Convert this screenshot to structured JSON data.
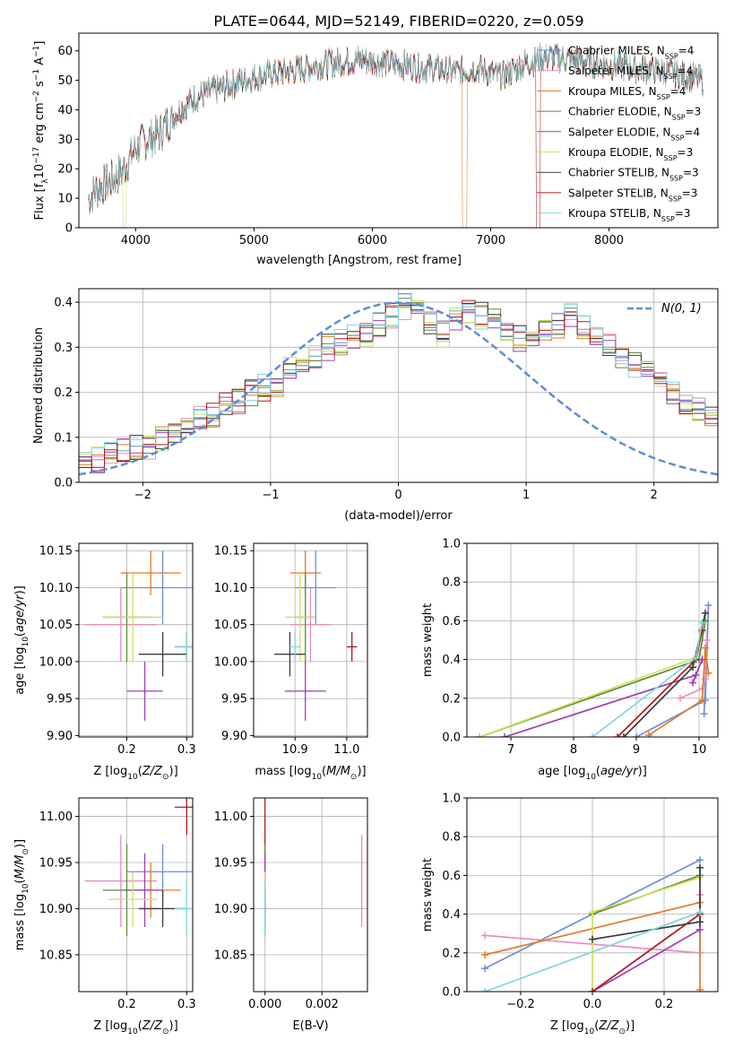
{
  "figure_title": "PLATE=0644, MJD=52149, FIBERID=0220, z=0.059",
  "colors": {
    "Chabrier MILES": "#6a8fd8",
    "Salpeter MILES": "#e58fc0",
    "Kroupa MILES": "#e07b28",
    "Chabrier ELODIE": "#5c8a3a",
    "Salpeter ELODIE": "#9b3fb0",
    "Kroupa ELODIE": "#cfe05a",
    "Chabrier STELIB": "#3a3a3a",
    "Salpeter STELIB": "#b01818",
    "Kroupa STELIB": "#7fd6e0",
    "gaussian": "#5b8fd4"
  },
  "chart_data": [
    {
      "id": "spectrum",
      "type": "line",
      "xlabel": "wavelength [Angstrom, rest frame]",
      "ylabel": "Flux [f_λ 10^-17 erg cm^-2 s^-1 A^-1]",
      "xlim": [
        3520,
        8920
      ],
      "ylim": [
        0,
        66
      ],
      "xticks": [
        4000,
        5000,
        6000,
        7000,
        8000
      ],
      "yticks": [
        0,
        10,
        20,
        30,
        40,
        50,
        60
      ],
      "grid": false,
      "legend_position": "right",
      "legend": [
        {
          "model": "Chabrier MILES",
          "label_prefix": "Chabrier MILES, N",
          "sub": "SSP",
          "suffix": "=4"
        },
        {
          "model": "Salpeter MILES",
          "label_prefix": "Salpeter MILES, N",
          "sub": "SSP",
          "suffix": "=4"
        },
        {
          "model": "Kroupa MILES",
          "label_prefix": "Kroupa MILES, N",
          "sub": "SSP",
          "suffix": "=4"
        },
        {
          "model": "Chabrier ELODIE",
          "label_prefix": "Chabrier ELODIE, N",
          "sub": "SSP",
          "suffix": "=3"
        },
        {
          "model": "Salpeter ELODIE",
          "label_prefix": "Salpeter ELODIE, N",
          "sub": "SSP",
          "suffix": "=4"
        },
        {
          "model": "Kroupa ELODIE",
          "label_prefix": "Kroupa ELODIE, N",
          "sub": "SSP",
          "suffix": "=3"
        },
        {
          "model": "Chabrier STELIB",
          "label_prefix": "Chabrier STELIB, N",
          "sub": "SSP",
          "suffix": "=3"
        },
        {
          "model": "Salpeter STELIB",
          "label_prefix": "Salpeter STELIB, N",
          "sub": "SSP",
          "suffix": "=3"
        },
        {
          "model": "Kroupa STELIB",
          "label_prefix": "Kroupa STELIB, N",
          "sub": "SSP",
          "suffix": "=3"
        }
      ],
      "continuum": {
        "x": [
          3600,
          3700,
          3800,
          3900,
          4000,
          4100,
          4200,
          4300,
          4400,
          4500,
          4700,
          4900,
          5100,
          5300,
          5500,
          5700,
          5900,
          6100,
          6300,
          6500,
          6700,
          6900,
          7100,
          7300,
          7500,
          7700,
          8000,
          8300,
          8600,
          8800
        ],
        "y": [
          10,
          14,
          16,
          20,
          27,
          30,
          32,
          37,
          41,
          44,
          47,
          50,
          52,
          53,
          55,
          56,
          57,
          56,
          55,
          54,
          53,
          54,
          51,
          56,
          58,
          57,
          55,
          54,
          52,
          50
        ]
      },
      "notes": "spectra drawn as noisy traces around the continuum; Kroupa MILES and Salpeter STELIB drop to zero near 6780 Å and 7400 Å"
    },
    {
      "id": "residual_hist",
      "type": "bar",
      "xlabel": "(data-model)/error",
      "ylabel": "Normed distribution",
      "xlim": [
        -2.5,
        2.5
      ],
      "ylim": [
        0,
        0.43
      ],
      "xticks": [
        -2,
        -1,
        0,
        1,
        2
      ],
      "yticks": [
        0.0,
        0.1,
        0.2,
        0.3,
        0.4
      ],
      "grid": true,
      "legend_position": "top-right",
      "gaussian_label": "N(0, 1)",
      "bin_edges_from": -2.5,
      "bin_width": 0.1,
      "series": [
        {
          "model": "Chabrier MILES",
          "values": [
            0.05,
            0.05,
            0.06,
            0.07,
            0.08,
            0.08,
            0.1,
            0.11,
            0.12,
            0.14,
            0.15,
            0.18,
            0.18,
            0.2,
            0.21,
            0.22,
            0.25,
            0.26,
            0.28,
            0.3,
            0.31,
            0.32,
            0.33,
            0.35,
            0.37,
            0.39,
            0.38,
            0.35,
            0.33,
            0.36,
            0.38,
            0.37,
            0.36,
            0.34,
            0.32,
            0.33,
            0.33,
            0.35,
            0.37,
            0.34,
            0.32,
            0.3,
            0.28,
            0.26,
            0.24,
            0.22,
            0.2,
            0.18,
            0.16,
            0.14,
            0.12,
            0.11,
            0.1,
            0.08,
            0.07,
            0.06,
            0.05,
            0.05,
            0.04,
            0.03
          ]
        }
      ]
    },
    {
      "id": "age_vs_Z",
      "type": "scatter",
      "xlabel": "Z [log10(Z/Z⊙)]",
      "ylabel": "age  [log10(age/yr)]",
      "xlim": [
        0.12,
        0.31
      ],
      "ylim": [
        9.898,
        10.16
      ],
      "xticks": [
        0.2,
        0.3
      ],
      "yticks": [
        9.9,
        9.95,
        10.0,
        10.05,
        10.1,
        10.15
      ],
      "grid": true,
      "points": [
        {
          "model": "Chabrier MILES",
          "x": 0.26,
          "y": 10.1,
          "xerr": 0.07,
          "yerr": 0.05
        },
        {
          "model": "Salpeter MILES",
          "x": 0.19,
          "y": 10.05,
          "xerr": 0.06,
          "yerr": 0.05
        },
        {
          "model": "Kroupa MILES",
          "x": 0.24,
          "y": 10.12,
          "xerr": 0.05,
          "yerr": 0.03
        },
        {
          "model": "Chabrier ELODIE",
          "x": 0.2,
          "y": 10.06,
          "xerr": 0.04,
          "yerr": 0.06
        },
        {
          "model": "Salpeter ELODIE",
          "x": 0.23,
          "y": 9.96,
          "xerr": 0.03,
          "yerr": 0.04
        },
        {
          "model": "Kroupa ELODIE",
          "x": 0.21,
          "y": 10.06,
          "xerr": 0.05,
          "yerr": 0.06
        },
        {
          "model": "Chabrier STELIB",
          "x": 0.26,
          "y": 10.01,
          "xerr": 0.04,
          "yerr": 0.03
        },
        {
          "model": "Salpeter STELIB",
          "x": 0.3,
          "y": 10.02,
          "xerr": 0.02,
          "yerr": 0.02
        },
        {
          "model": "Kroupa STELIB",
          "x": 0.3,
          "y": 10.02,
          "xerr": 0.02,
          "yerr": 0.02
        }
      ]
    },
    {
      "id": "age_vs_mass",
      "type": "scatter",
      "xlabel": "mass [log10(M/M⊙)]",
      "ylabel": "",
      "xlim": [
        10.82,
        11.04
      ],
      "ylim": [
        9.898,
        10.16
      ],
      "xticks": [
        10.9,
        11.0
      ],
      "yticks": [
        9.9,
        9.95,
        10.0,
        10.05,
        10.1,
        10.15
      ],
      "grid": true,
      "points": [
        {
          "model": "Chabrier MILES",
          "x": 10.94,
          "y": 10.1,
          "xerr": 0.04,
          "yerr": 0.05
        },
        {
          "model": "Salpeter MILES",
          "x": 10.93,
          "y": 10.05,
          "xerr": 0.04,
          "yerr": 0.05
        },
        {
          "model": "Kroupa MILES",
          "x": 10.92,
          "y": 10.12,
          "xerr": 0.03,
          "yerr": 0.03
        },
        {
          "model": "Chabrier ELODIE",
          "x": 10.92,
          "y": 10.06,
          "xerr": 0.02,
          "yerr": 0.06
        },
        {
          "model": "Salpeter ELODIE",
          "x": 10.92,
          "y": 9.96,
          "xerr": 0.04,
          "yerr": 0.04
        },
        {
          "model": "Kroupa ELODIE",
          "x": 10.91,
          "y": 10.06,
          "xerr": 0.03,
          "yerr": 0.06
        },
        {
          "model": "Chabrier STELIB",
          "x": 10.89,
          "y": 10.01,
          "xerr": 0.03,
          "yerr": 0.03
        },
        {
          "model": "Salpeter STELIB",
          "x": 11.01,
          "y": 10.02,
          "xerr": 0.01,
          "yerr": 0.02
        },
        {
          "model": "Kroupa STELIB",
          "x": 10.9,
          "y": 10.02,
          "xerr": 0.01,
          "yerr": 0.02
        }
      ]
    },
    {
      "id": "mass_vs_Z",
      "type": "scatter",
      "xlabel": "Z [log10(Z/Z⊙)]",
      "ylabel": "mass [log10(M/M⊙)]",
      "xlim": [
        0.12,
        0.31
      ],
      "ylim": [
        10.81,
        11.02
      ],
      "xticks": [
        0.2,
        0.3
      ],
      "yticks": [
        10.85,
        10.9,
        10.95,
        11.0
      ],
      "grid": true,
      "points": [
        {
          "model": "Chabrier MILES",
          "x": 0.26,
          "y": 10.94,
          "xerr": 0.06,
          "yerr": 0.03
        },
        {
          "model": "Salpeter MILES",
          "x": 0.19,
          "y": 10.93,
          "xerr": 0.06,
          "yerr": 0.05
        },
        {
          "model": "Kroupa MILES",
          "x": 0.24,
          "y": 10.92,
          "xerr": 0.05,
          "yerr": 0.03
        },
        {
          "model": "Chabrier ELODIE",
          "x": 0.2,
          "y": 10.92,
          "xerr": 0.04,
          "yerr": 0.05
        },
        {
          "model": "Salpeter ELODIE",
          "x": 0.23,
          "y": 10.92,
          "xerr": 0.03,
          "yerr": 0.04
        },
        {
          "model": "Kroupa ELODIE",
          "x": 0.21,
          "y": 10.91,
          "xerr": 0.04,
          "yerr": 0.03
        },
        {
          "model": "Chabrier STELIB",
          "x": 0.26,
          "y": 10.9,
          "xerr": 0.04,
          "yerr": 0.02
        },
        {
          "model": "Salpeter STELIB",
          "x": 0.3,
          "y": 11.01,
          "xerr": 0.02,
          "yerr": 0.03
        },
        {
          "model": "Kroupa STELIB",
          "x": 0.3,
          "y": 10.9,
          "xerr": 0.02,
          "yerr": 0.03
        }
      ]
    },
    {
      "id": "mass_vs_ebv",
      "type": "scatter",
      "xlabel": "E(B-V)",
      "ylabel": "",
      "xlim": [
        -0.0004,
        0.0036
      ],
      "ylim": [
        10.81,
        11.02
      ],
      "xticks": [
        0.0,
        0.002
      ],
      "yticks": [
        10.85,
        10.9,
        10.95,
        11.0
      ],
      "grid": true,
      "points": [
        {
          "model": "Chabrier MILES",
          "x": 0.0,
          "y": 10.94,
          "xerr": 0.0,
          "yerr": 0.03
        },
        {
          "model": "Salpeter MILES",
          "x": 0.0034,
          "y": 10.93,
          "xerr": 0.0,
          "yerr": 0.05
        },
        {
          "model": "Kroupa MILES",
          "x": 0.0,
          "y": 10.92,
          "xerr": 0.0,
          "yerr": 0.03
        },
        {
          "model": "Chabrier ELODIE",
          "x": 0.0,
          "y": 10.92,
          "xerr": 0.0,
          "yerr": 0.05
        },
        {
          "model": "Salpeter ELODIE",
          "x": 0.0,
          "y": 10.92,
          "xerr": 0.0,
          "yerr": 0.04
        },
        {
          "model": "Kroupa ELODIE",
          "x": 0.0,
          "y": 10.91,
          "xerr": 0.0,
          "yerr": 0.03
        },
        {
          "model": "Chabrier STELIB",
          "x": 0.0,
          "y": 10.9,
          "xerr": 0.0,
          "yerr": 0.02
        },
        {
          "model": "Salpeter STELIB",
          "x": 0.0,
          "y": 11.01,
          "xerr": 0.0,
          "yerr": 0.04
        },
        {
          "model": "Kroupa STELIB",
          "x": 0.0,
          "y": 10.9,
          "xerr": 0.0,
          "yerr": 0.03
        }
      ]
    },
    {
      "id": "weight_vs_age",
      "type": "line",
      "xlabel": "age  [log10(age/yr)]",
      "ylabel": "mass weight",
      "xlim": [
        6.3,
        10.3
      ],
      "ylim": [
        0.0,
        1.0
      ],
      "xticks": [
        7,
        8,
        9,
        10
      ],
      "yticks": [
        0.0,
        0.2,
        0.4,
        0.6,
        0.8,
        1.0
      ],
      "grid": true,
      "series": [
        {
          "model": "Chabrier MILES",
          "x": [
            10.08,
            10.15,
            10.1,
            9.0
          ],
          "y": [
            0.12,
            0.68,
            0.19,
            0.0
          ]
        },
        {
          "model": "Salpeter MILES",
          "x": [
            10.12,
            10.1,
            10.05,
            9.7
          ],
          "y": [
            0.5,
            0.3,
            0.25,
            0.2
          ]
        },
        {
          "model": "Kroupa MILES",
          "x": [
            10.15,
            10.1,
            10.05,
            9.2
          ],
          "y": [
            0.33,
            0.46,
            0.19,
            0.01
          ]
        },
        {
          "model": "Chabrier ELODIE",
          "x": [
            6.5,
            10.0,
            10.1
          ],
          "y": [
            0.0,
            0.4,
            0.6
          ]
        },
        {
          "model": "Salpeter ELODIE",
          "x": [
            6.9,
            9.95,
            9.9,
            10.05
          ],
          "y": [
            0.0,
            0.32,
            0.28,
            0.4
          ]
        },
        {
          "model": "Kroupa ELODIE",
          "x": [
            6.5,
            9.95,
            10.05
          ],
          "y": [
            0.0,
            0.41,
            0.59
          ]
        },
        {
          "model": "Chabrier STELIB",
          "x": [
            8.8,
            9.9,
            10.1
          ],
          "y": [
            0.0,
            0.36,
            0.64
          ]
        },
        {
          "model": "Salpeter STELIB",
          "x": [
            8.7,
            9.95,
            10.05
          ],
          "y": [
            0.0,
            0.4,
            0.55
          ]
        },
        {
          "model": "Kroupa STELIB",
          "x": [
            8.3,
            9.95,
            10.05
          ],
          "y": [
            0.0,
            0.41,
            0.59
          ]
        }
      ]
    },
    {
      "id": "weight_vs_Z",
      "type": "line",
      "xlabel": "Z [log10(Z/Z⊙)]",
      "ylabel": "mass weight",
      "xlim": [
        -0.35,
        0.35
      ],
      "ylim": [
        0.0,
        1.0
      ],
      "xticks": [
        -0.2,
        0.0,
        0.2
      ],
      "yticks": [
        0.0,
        0.2,
        0.4,
        0.6,
        0.8,
        1.0
      ],
      "grid": true,
      "series": [
        {
          "model": "Chabrier MILES",
          "x": [
            -0.3,
            0.3
          ],
          "y": [
            0.12,
            0.68
          ]
        },
        {
          "model": "Salpeter MILES",
          "x": [
            -0.3,
            0.3,
            0.3
          ],
          "y": [
            0.29,
            0.2,
            0.5
          ]
        },
        {
          "model": "Kroupa MILES",
          "x": [
            -0.3,
            0.3,
            0.3
          ],
          "y": [
            0.19,
            0.46,
            0.01
          ]
        },
        {
          "model": "Chabrier ELODIE",
          "x": [
            0.0,
            0.3
          ],
          "y": [
            0.4,
            0.6
          ]
        },
        {
          "model": "Salpeter ELODIE",
          "x": [
            0.0,
            0.3,
            0.3
          ],
          "y": [
            0.0,
            0.32,
            0.4
          ]
        },
        {
          "model": "Kroupa ELODIE",
          "x": [
            0.0,
            0.0,
            0.3
          ],
          "y": [
            0.0,
            0.41,
            0.59
          ]
        },
        {
          "model": "Chabrier STELIB",
          "x": [
            0.0,
            0.3,
            0.3
          ],
          "y": [
            0.27,
            0.36,
            0.64
          ]
        },
        {
          "model": "Salpeter STELIB",
          "x": [
            0.0,
            0.3
          ],
          "y": [
            0.0,
            0.4
          ]
        },
        {
          "model": "Kroupa STELIB",
          "x": [
            -0.3,
            0.3
          ],
          "y": [
            0.0,
            0.41
          ]
        }
      ]
    }
  ]
}
